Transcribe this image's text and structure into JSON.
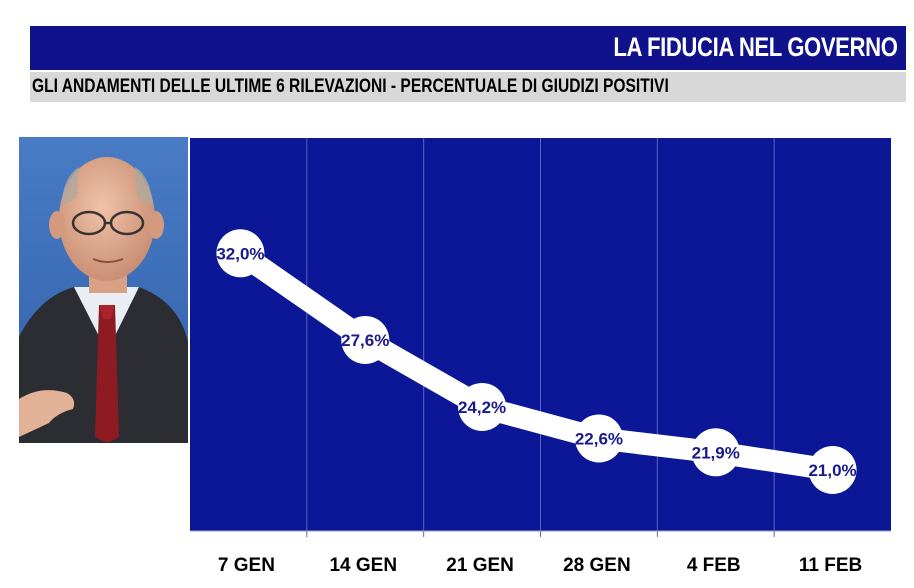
{
  "header": {
    "title": "LA FIDUCIA NEL GOVERNO",
    "subtitle": "GLI ANDAMENTI DELLE ULTIME 6 RILEVAZIONI - PERCENTUALE DI GIUDIZI POSITIVI"
  },
  "colors": {
    "title_bar": "#10128c",
    "subtitle_bar": "#d8d8d8",
    "plot_background": "#0b1796",
    "line": "#ffffff",
    "label_text": "#1a1a8c"
  },
  "chart_data": {
    "type": "line",
    "categories": [
      "7 GEN",
      "14 GEN",
      "21 GEN",
      "28 GEN",
      "4 FEB",
      "11 FEB"
    ],
    "values": [
      32.0,
      27.6,
      24.2,
      22.6,
      21.9,
      21.0
    ],
    "data_labels": [
      "32,0%",
      "27,6%",
      "24,2%",
      "22,6%",
      "21,9%",
      "21,0%"
    ],
    "unit": "%",
    "grid": "vertical",
    "legend": "none"
  }
}
